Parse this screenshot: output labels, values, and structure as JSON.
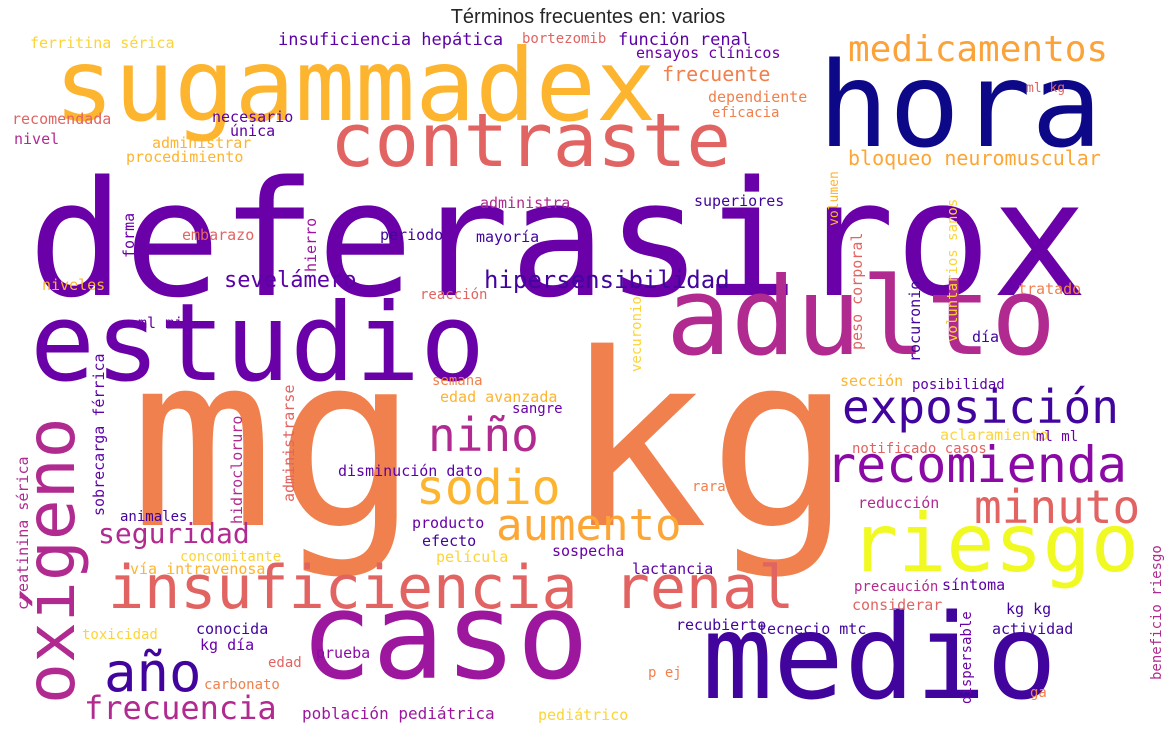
{
  "title": "Términos frecuentes en: varios",
  "palette": "plasma",
  "words": [
    {
      "text": "deferasirox",
      "color": "#6a00a8"
    },
    {
      "text": "mg kg",
      "color": "#f0804d"
    },
    {
      "text": "hora",
      "color": "#0d0887"
    },
    {
      "text": "sugammadex",
      "color": "#fdb42f"
    },
    {
      "text": "estudio",
      "color": "#6a00a8"
    },
    {
      "text": "adulto",
      "color": "#b12a90"
    },
    {
      "text": "caso",
      "color": "#9c179e"
    },
    {
      "text": "medio",
      "color": "#41049d"
    },
    {
      "text": "contraste",
      "color": "#e16462"
    },
    {
      "text": "insuficiencia renal",
      "color": "#e16462"
    },
    {
      "text": "riesgo",
      "color": "#f0f921"
    },
    {
      "text": "oxígeno",
      "color": "#b12a90"
    },
    {
      "text": "exposición",
      "color": "#41049d"
    },
    {
      "text": "recomienda",
      "color": "#8b0aa5"
    },
    {
      "text": "medicamentos",
      "color": "#fba238"
    },
    {
      "text": "niño",
      "color": "#b12a90"
    },
    {
      "text": "sodio",
      "color": "#fdb42f"
    },
    {
      "text": "aumento",
      "color": "#fca636"
    },
    {
      "text": "minuto",
      "color": "#e16462"
    },
    {
      "text": "año",
      "color": "#41049d"
    },
    {
      "text": "frecuencia",
      "color": "#b12a90"
    },
    {
      "text": "seguridad",
      "color": "#b12a90"
    },
    {
      "text": "sevelámero",
      "color": "#5c01a6"
    },
    {
      "text": "hipersensibilidad",
      "color": "#41049d"
    },
    {
      "text": "bloqueo neuromuscular",
      "color": "#fca636"
    },
    {
      "text": "frecuente",
      "color": "#f0804d"
    },
    {
      "text": "insuficiencia hepática",
      "color": "#5c01a6"
    },
    {
      "text": "función renal",
      "color": "#5c01a6"
    },
    {
      "text": "ensayos clínicos",
      "color": "#6a00a8"
    },
    {
      "text": "bortezomib",
      "color": "#e16462"
    },
    {
      "text": "ferritina sérica",
      "color": "#fdd435"
    },
    {
      "text": "recomendada",
      "color": "#e16462"
    },
    {
      "text": "nivel",
      "color": "#b12a90"
    },
    {
      "text": "necesario",
      "color": "#5c01a6"
    },
    {
      "text": "única",
      "color": "#5c01a6"
    },
    {
      "text": "administrar",
      "color": "#fdb42f"
    },
    {
      "text": "procedimiento",
      "color": "#fdb42f"
    },
    {
      "text": "dependiente",
      "color": "#f0804d"
    },
    {
      "text": "eficacia",
      "color": "#f0804d"
    },
    {
      "text": "ml kg",
      "color": "#e16462"
    },
    {
      "text": "forma",
      "color": "#6a00a8"
    },
    {
      "text": "embarazo",
      "color": "#e16462"
    },
    {
      "text": "hierro",
      "color": "#9c179e"
    },
    {
      "text": "administra",
      "color": "#b12a90"
    },
    {
      "text": "periodo",
      "color": "#41049d"
    },
    {
      "text": "mayoría",
      "color": "#41049d"
    },
    {
      "text": "superiores",
      "color": "#41049d"
    },
    {
      "text": "volumen",
      "color": "#fdb42f"
    },
    {
      "text": "peso corporal",
      "color": "#e16462"
    },
    {
      "text": "voluntarios sanos",
      "color": "#fdd435"
    },
    {
      "text": "niveles",
      "color": "#fdb42f"
    },
    {
      "text": "reacción",
      "color": "#e16462"
    },
    {
      "text": "tratado",
      "color": "#f0804d"
    },
    {
      "text": "ml min",
      "color": "#6a00a8"
    },
    {
      "text": "vecuronio",
      "color": "#fdd435"
    },
    {
      "text": "rocuronio",
      "color": "#41049d"
    },
    {
      "text": "día",
      "color": "#41049d"
    },
    {
      "text": "semana",
      "color": "#f0804d"
    },
    {
      "text": "edad avanzada",
      "color": "#fdb42f"
    },
    {
      "text": "sangre",
      "color": "#6a00a8"
    },
    {
      "text": "sección",
      "color": "#fdb42f"
    },
    {
      "text": "posibilidad",
      "color": "#5c01a6"
    },
    {
      "text": "aclaramiento",
      "color": "#fdd435"
    },
    {
      "text": "ml ml",
      "color": "#6a00a8"
    },
    {
      "text": "notificado casos",
      "color": "#e16462"
    },
    {
      "text": "creatinina sérica",
      "color": "#b12a90"
    },
    {
      "text": "sobrecarga férrica",
      "color": "#5c01a6"
    },
    {
      "text": "hidrocloruro",
      "color": "#b12a90"
    },
    {
      "text": "administrarse",
      "color": "#e16462"
    },
    {
      "text": "disminución dato",
      "color": "#5c01a6"
    },
    {
      "text": "rara",
      "color": "#f0804d"
    },
    {
      "text": "animales",
      "color": "#41049d"
    },
    {
      "text": "producto",
      "color": "#6a00a8"
    },
    {
      "text": "reducción",
      "color": "#b12a90"
    },
    {
      "text": "efecto",
      "color": "#41049d"
    },
    {
      "text": "concomitante",
      "color": "#fdd435"
    },
    {
      "text": "película",
      "color": "#fdd435"
    },
    {
      "text": "sospecha",
      "color": "#6a00a8"
    },
    {
      "text": "vía intravenosa",
      "color": "#fdb42f"
    },
    {
      "text": "lactancia",
      "color": "#5c01a6"
    },
    {
      "text": "precaución",
      "color": "#b12a90"
    },
    {
      "text": "síntoma",
      "color": "#5c01a6"
    },
    {
      "text": "considerar",
      "color": "#e16462"
    },
    {
      "text": "beneficio riesgo",
      "color": "#b12a90"
    },
    {
      "text": "toxicidad",
      "color": "#fdd435"
    },
    {
      "text": "conocida",
      "color": "#41049d"
    },
    {
      "text": "kg día",
      "color": "#6a00a8"
    },
    {
      "text": "edad",
      "color": "#e16462"
    },
    {
      "text": "carbonato",
      "color": "#f0804d"
    },
    {
      "text": "recubierto",
      "color": "#41049d"
    },
    {
      "text": "tecnecio mtc",
      "color": "#41049d"
    },
    {
      "text": "kg kg",
      "color": "#41049d"
    },
    {
      "text": "actividad",
      "color": "#41049d"
    },
    {
      "text": "dispersable",
      "color": "#6a00a8"
    },
    {
      "text": "prueba",
      "color": "#8b0aa5"
    },
    {
      "text": "p ej",
      "color": "#f0804d"
    },
    {
      "text": "ga",
      "color": "#f0804d"
    },
    {
      "text": "población pediátrica",
      "color": "#9c179e"
    },
    {
      "text": "pediátrico",
      "color": "#fdd435"
    }
  ]
}
